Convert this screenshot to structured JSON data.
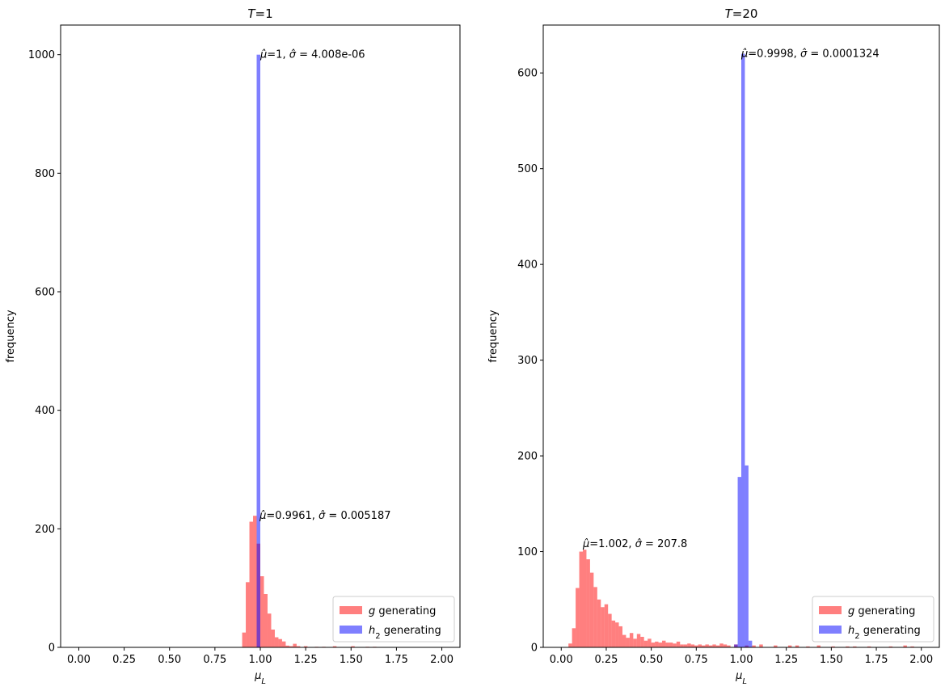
{
  "chart_data": [
    {
      "type": "bar",
      "title": "T=1",
      "xlabel": "μL",
      "ylabel": "frequency",
      "xlim": [
        -0.1,
        2.1
      ],
      "ylim": [
        0,
        1050
      ],
      "xticks": [
        "0.00",
        "0.25",
        "0.50",
        "0.75",
        "1.00",
        "1.25",
        "1.50",
        "1.75",
        "2.00"
      ],
      "yticks": [
        "0",
        "200",
        "400",
        "600",
        "800",
        "1000"
      ],
      "legend": {
        "placement": "lower-right",
        "entries": [
          "g generating",
          "h2 generating"
        ]
      },
      "series": [
        {
          "name": "g generating",
          "color": "#ff0000",
          "alpha": 0.5,
          "bin_width": 0.02,
          "bins": [
            {
              "x": 0.9,
              "y": 25
            },
            {
              "x": 0.92,
              "y": 110
            },
            {
              "x": 0.94,
              "y": 212
            },
            {
              "x": 0.96,
              "y": 222
            },
            {
              "x": 0.98,
              "y": 175
            },
            {
              "x": 1.0,
              "y": 120
            },
            {
              "x": 1.02,
              "y": 90
            },
            {
              "x": 1.04,
              "y": 57
            },
            {
              "x": 1.06,
              "y": 30
            },
            {
              "x": 1.08,
              "y": 17
            },
            {
              "x": 1.1,
              "y": 14
            },
            {
              "x": 1.12,
              "y": 10
            },
            {
              "x": 1.14,
              "y": 3
            },
            {
              "x": 1.16,
              "y": 2
            },
            {
              "x": 1.18,
              "y": 6
            },
            {
              "x": 1.2,
              "y": 2
            },
            {
              "x": 1.24,
              "y": 2
            },
            {
              "x": 1.3,
              "y": 1
            },
            {
              "x": 1.34,
              "y": 1
            },
            {
              "x": 1.4,
              "y": 2
            },
            {
              "x": 1.5,
              "y": 2
            },
            {
              "x": 1.58,
              "y": 1
            },
            {
              "x": 1.62,
              "y": 1
            }
          ],
          "annotation": {
            "text": "μ̂=0.9961, σ̂ = 0.005187",
            "x": 0.9961,
            "y": 222
          }
        },
        {
          "name": "h2 generating",
          "color": "#0000ff",
          "alpha": 0.5,
          "bin_width": 0.02,
          "bins": [
            {
              "x": 0.98,
              "y": 1000
            }
          ],
          "annotation": {
            "text": "μ̂=1, σ̂ = 4.008e-06",
            "x": 1.0,
            "y": 1000
          }
        }
      ]
    },
    {
      "type": "bar",
      "title": "T=20",
      "xlabel": "μL",
      "ylabel": "frequency",
      "xlim": [
        -0.1,
        2.1
      ],
      "ylim": [
        0,
        650
      ],
      "xticks": [
        "0.00",
        "0.25",
        "0.50",
        "0.75",
        "1.00",
        "1.25",
        "1.50",
        "1.75",
        "2.00"
      ],
      "yticks": [
        "0",
        "100",
        "200",
        "300",
        "400",
        "500",
        "600"
      ],
      "legend": {
        "placement": "lower-right",
        "entries": [
          "g generating",
          "h2 generating"
        ]
      },
      "series": [
        {
          "name": "g generating",
          "color": "#ff0000",
          "alpha": 0.5,
          "bin_width": 0.02,
          "bins": [
            {
              "x": 0.04,
              "y": 4
            },
            {
              "x": 0.06,
              "y": 20
            },
            {
              "x": 0.08,
              "y": 62
            },
            {
              "x": 0.1,
              "y": 100
            },
            {
              "x": 0.12,
              "y": 102
            },
            {
              "x": 0.14,
              "y": 92
            },
            {
              "x": 0.16,
              "y": 78
            },
            {
              "x": 0.18,
              "y": 63
            },
            {
              "x": 0.2,
              "y": 50
            },
            {
              "x": 0.22,
              "y": 42
            },
            {
              "x": 0.24,
              "y": 45
            },
            {
              "x": 0.26,
              "y": 35
            },
            {
              "x": 0.28,
              "y": 28
            },
            {
              "x": 0.3,
              "y": 26
            },
            {
              "x": 0.32,
              "y": 22
            },
            {
              "x": 0.34,
              "y": 13
            },
            {
              "x": 0.36,
              "y": 10
            },
            {
              "x": 0.38,
              "y": 15
            },
            {
              "x": 0.4,
              "y": 9
            },
            {
              "x": 0.42,
              "y": 14
            },
            {
              "x": 0.44,
              "y": 11
            },
            {
              "x": 0.46,
              "y": 7
            },
            {
              "x": 0.48,
              "y": 9
            },
            {
              "x": 0.5,
              "y": 5
            },
            {
              "x": 0.52,
              "y": 6
            },
            {
              "x": 0.54,
              "y": 5
            },
            {
              "x": 0.56,
              "y": 7
            },
            {
              "x": 0.58,
              "y": 5
            },
            {
              "x": 0.6,
              "y": 5
            },
            {
              "x": 0.62,
              "y": 4
            },
            {
              "x": 0.64,
              "y": 6
            },
            {
              "x": 0.66,
              "y": 3
            },
            {
              "x": 0.68,
              "y": 3
            },
            {
              "x": 0.7,
              "y": 4
            },
            {
              "x": 0.72,
              "y": 3
            },
            {
              "x": 0.74,
              "y": 2
            },
            {
              "x": 0.76,
              "y": 3
            },
            {
              "x": 0.78,
              "y": 2
            },
            {
              "x": 0.8,
              "y": 3
            },
            {
              "x": 0.82,
              "y": 2
            },
            {
              "x": 0.84,
              "y": 3
            },
            {
              "x": 0.86,
              "y": 2
            },
            {
              "x": 0.88,
              "y": 4
            },
            {
              "x": 0.9,
              "y": 3
            },
            {
              "x": 0.92,
              "y": 2
            },
            {
              "x": 0.96,
              "y": 3
            },
            {
              "x": 1.02,
              "y": 2
            },
            {
              "x": 1.06,
              "y": 2
            },
            {
              "x": 1.1,
              "y": 3
            },
            {
              "x": 1.18,
              "y": 2
            },
            {
              "x": 1.26,
              "y": 2
            },
            {
              "x": 1.3,
              "y": 2
            },
            {
              "x": 1.36,
              "y": 1
            },
            {
              "x": 1.42,
              "y": 2
            },
            {
              "x": 1.5,
              "y": 1
            },
            {
              "x": 1.58,
              "y": 1
            },
            {
              "x": 1.62,
              "y": 1
            },
            {
              "x": 1.7,
              "y": 1
            },
            {
              "x": 1.82,
              "y": 1
            },
            {
              "x": 1.9,
              "y": 2
            },
            {
              "x": 1.94,
              "y": 1
            }
          ],
          "annotation": {
            "text": "μ̂=1.002, σ̂ = 207.8",
            "x": 0.12,
            "y": 108
          }
        },
        {
          "name": "h2 generating",
          "color": "#0000ff",
          "alpha": 0.5,
          "bin_width": 0.02,
          "bins": [
            {
              "x": 0.96,
              "y": 3
            },
            {
              "x": 0.98,
              "y": 178
            },
            {
              "x": 1.0,
              "y": 620
            },
            {
              "x": 1.02,
              "y": 190
            },
            {
              "x": 1.04,
              "y": 7
            }
          ],
          "annotation": {
            "text": "μ̂=0.9998, σ̂ = 0.0001324",
            "x": 1.0,
            "y": 620
          }
        }
      ]
    }
  ]
}
